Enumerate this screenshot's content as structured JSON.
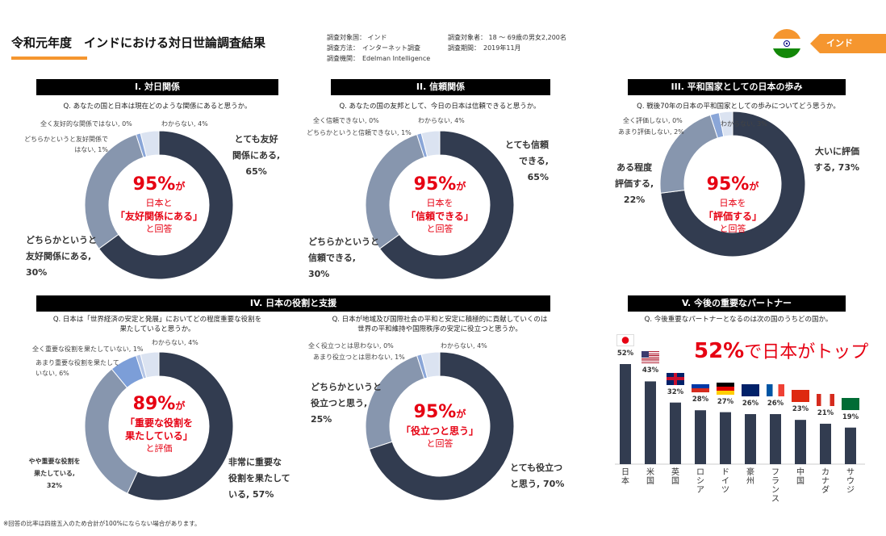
{
  "header": {
    "title": "令和元年度　インドにおける対日世論調査結果",
    "meta": {
      "country_label": "調査対象国：",
      "country": "インド",
      "subjects_label": "調査対象者：",
      "subjects": "18 ～ 69歳の男女2,200名",
      "method_label": "調査方法：",
      "method": "インターネット調査",
      "period_label": "調査期間：",
      "period": "2019年11月",
      "org_label": "調査機関：",
      "org": "Edelman Intelligence"
    },
    "country_badge": "インド"
  },
  "footnote": "※回答の比率は四捨五入のため合計が100%にならない場合があります。",
  "colors": {
    "dark": "#323c50",
    "mid": "#8796ae",
    "blue": "#8aa6d8",
    "light": "#dbe3f1",
    "red": "#e60012",
    "orange": "#f5962f"
  },
  "sections": {
    "s1": "I. 対日関係",
    "s2": "II. 信頼関係",
    "s3": "III. 平和国家としての日本の歩み",
    "s4": "IV. 日本の役割と支援",
    "s5": "V. 今後の重要なパートナー"
  },
  "chart_data": [
    {
      "type": "pie",
      "id": "q1",
      "question": "Q. あなたの国と日本は現在どのような関係にあると思うか。",
      "labels": [
        "とても友好関係にある",
        "どちらかというと友好関係にある",
        "どちらかというと友好関係ではない",
        "全く友好的な関係ではない",
        "わからない"
      ],
      "values": [
        65,
        30,
        1,
        0,
        4
      ],
      "label_text": [
        "とても友好",
        "関係にある,",
        "65%",
        "どちらかというと",
        "友好関係にある,",
        "30%",
        "どちらかというと友好関係で",
        "はない, 1%",
        "全く友好的な関係ではない, 0%",
        "わからない, 4%"
      ],
      "center": [
        "95%",
        "が",
        "日本と",
        "「友好関係にある」",
        "と回答"
      ]
    },
    {
      "type": "pie",
      "id": "q2",
      "question": "Q. あなたの国の友邦として、今日の日本は信頼できると思うか。",
      "labels": [
        "とても信頼できる",
        "どちらかというと信頼できる",
        "どちらかというと信頼できない",
        "全く信頼できない",
        "わからない"
      ],
      "values": [
        65,
        30,
        1,
        0,
        4
      ],
      "label_text": [
        "とても信頼",
        "できる,",
        "65%",
        "どちらかというと",
        "信頼できる,",
        "30%",
        "どちらかというと信頼できない, 1%",
        "全く信頼できない, 0%",
        "わからない, 4%"
      ],
      "center": [
        "95%",
        "が",
        "日本を",
        "「信頼できる」",
        "と回答"
      ]
    },
    {
      "type": "pie",
      "id": "q3",
      "question": "Q. 戦後70年の日本の平和国家としての歩みについてどう思うか。",
      "labels": [
        "大いに評価する",
        "ある程度評価する",
        "あまり評価しない",
        "全く評価しない",
        "わからない"
      ],
      "values": [
        73,
        22,
        2,
        0,
        3
      ],
      "label_text": [
        "大いに評価",
        "する, 73%",
        "ある程度",
        "評価する,",
        "22%",
        "あまり評価しない, 2%",
        "全く評価しない, 0%",
        "わからない, 3%"
      ],
      "center": [
        "95%",
        "が",
        "日本を",
        "「評価する」",
        "と回答"
      ]
    },
    {
      "type": "pie",
      "id": "q4",
      "question": [
        "Q. 日本は「世界経済の安定と発展」においてどの程度重要な役割を",
        "果たしていると思うか。"
      ],
      "labels": [
        "非常に重要な役割を果たしている",
        "やや重要な役割を果たしている",
        "あまり重要な役割を果たしていない",
        "全く重要な役割を果たしていない",
        "わからない"
      ],
      "values": [
        57,
        32,
        6,
        1,
        4
      ],
      "label_text": [
        "非常に重要な",
        "役割を果たして",
        "いる, 57%",
        "やや重要な役割を",
        "果たしている,",
        "32%",
        "あまり重要な役割を果たして",
        "いない, 6%",
        "全く重要な役割を果たしていない, 1%",
        "わからない, 4%"
      ],
      "center": [
        "89%",
        "が",
        "「重要な役割を",
        "果たしている」",
        "と評価"
      ]
    },
    {
      "type": "pie",
      "id": "q5",
      "question": [
        "Q. 日本が地域及び国際社会の平和と安定に積極的に貢献していくのは",
        "世界の平和維持や国際秩序の安定に役立つと思うか。"
      ],
      "labels": [
        "とても役立つと思う",
        "どちらかというと役立つと思う",
        "あまり役立つとは思わない",
        "全く役立つとは思わない",
        "わからない"
      ],
      "values": [
        70,
        25,
        1,
        0,
        4
      ],
      "label_text": [
        "とても役立つ",
        "と思う, 70%",
        "どちらかというと",
        "役立つと思う,",
        "25%",
        "あまり役立つとは思わない, 1%",
        "全く役立つとは思わない, 0%",
        "わからない, 4%"
      ],
      "center": [
        "95%",
        "が",
        "「役立つと思う」",
        "と回答"
      ]
    },
    {
      "type": "bar",
      "id": "q6",
      "question": "Q. 今後重要なパートナーとなるのは次の国のうちどの国か。",
      "headline": [
        "52%",
        "で日本がトップ"
      ],
      "categories": [
        "日本",
        "米国",
        "英国",
        "ロシア",
        "ドイツ",
        "豪州",
        "フランス",
        "中国",
        "カナダ",
        "サウジ"
      ],
      "values": [
        52,
        43,
        32,
        28,
        27,
        26,
        26,
        23,
        21,
        19
      ],
      "value_labels": [
        "52%",
        "43%",
        "32%",
        "28%",
        "27%",
        "26%",
        "26%",
        "23%",
        "21%",
        "19%"
      ],
      "ylim": [
        0,
        60
      ]
    }
  ]
}
